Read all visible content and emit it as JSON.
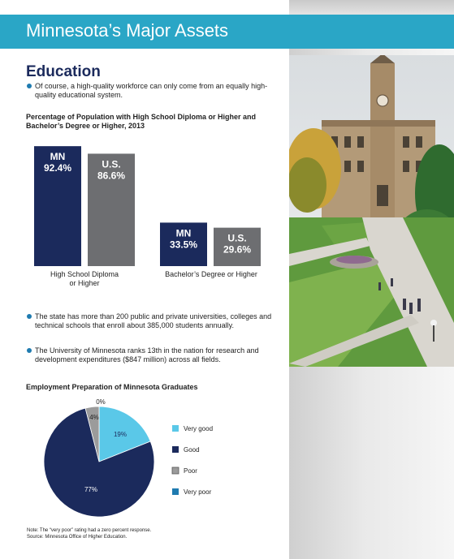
{
  "banner": {
    "title": "Minnesota’s Major Assets"
  },
  "section": {
    "heading": "Education"
  },
  "bullets_top": [
    "Of course, a high-quality workforce can only come from an equally high-quality educational system."
  ],
  "bullets_bottom": [
    "The state has more than 200 public and private universities, colleges and technical schools that enroll about 385,000 students annually.",
    "The University of Minnesota ranks 13th in the nation for research and development expenditures ($847 million) across all fields."
  ],
  "chart_data": [
    {
      "type": "bar",
      "title": "Percentage of Population with High School Diploma or Higher and Bachelor’s Degree or Higher, 2013",
      "categories": [
        "High School Diploma or Higher",
        "Bachelor’s Degree or Higher"
      ],
      "series": [
        {
          "name": "MN",
          "values": [
            92.4,
            33.5
          ],
          "labels": [
            "92.4%",
            "33.5%"
          ],
          "color": "#1b2a5c"
        },
        {
          "name": "U.S.",
          "values": [
            86.6,
            29.6
          ],
          "labels": [
            "86.6%",
            "29.6%"
          ],
          "color": "#6d6e71"
        }
      ],
      "ylim": [
        0,
        100
      ],
      "xlabel": "",
      "ylabel": "",
      "grid": false
    },
    {
      "type": "pie",
      "title": "Employment Preparation of Minnesota Graduates",
      "categories": [
        "Very good",
        "Good",
        "Poor",
        "Very poor"
      ],
      "values": [
        19,
        77,
        4,
        0
      ],
      "labels": [
        "19%",
        "77%",
        "4%",
        "0%"
      ],
      "colors": [
        "#5ac8e8",
        "#1b2a5c",
        "#9b9b9b",
        "#1f7bb0"
      ],
      "legend": "right"
    }
  ],
  "footnote": {
    "line1": "Note: The “very poor” rating had a zero percent response.",
    "line2": "Source: Minnesota Office of Higher Education."
  }
}
